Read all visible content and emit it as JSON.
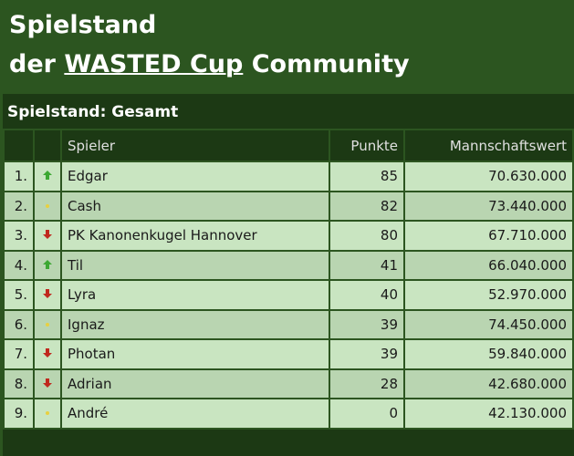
{
  "header": {
    "line1": "Spielstand",
    "prefix": "der",
    "link": "WASTED Cup",
    "suffix": "Community"
  },
  "table": {
    "title": "Spielstand: Gesamt",
    "columns": [
      "Spieler",
      "Punkte",
      "Mannschaftswert"
    ],
    "rows": [
      {
        "rank": "1.",
        "trend": "up",
        "name": "Edgar",
        "points": 85,
        "value": "70.630.000"
      },
      {
        "rank": "2.",
        "trend": "same",
        "name": "Cash",
        "points": 82,
        "value": "73.440.000"
      },
      {
        "rank": "3.",
        "trend": "down",
        "name": "PK Kanonenkugel Hannover",
        "points": 80,
        "value": "67.710.000"
      },
      {
        "rank": "4.",
        "trend": "up",
        "name": "Til",
        "points": 41,
        "value": "66.040.000"
      },
      {
        "rank": "5.",
        "trend": "down",
        "name": "Lyra",
        "points": 40,
        "value": "52.970.000"
      },
      {
        "rank": "6.",
        "trend": "same",
        "name": "Ignaz",
        "points": 39,
        "value": "74.450.000"
      },
      {
        "rank": "7.",
        "trend": "down",
        "name": "Photan",
        "points": 39,
        "value": "59.840.000"
      },
      {
        "rank": "8.",
        "trend": "down",
        "name": "Adrian",
        "points": 28,
        "value": "42.680.000"
      },
      {
        "rank": "9.",
        "trend": "same",
        "name": "André",
        "points": 0,
        "value": "42.130.000"
      }
    ]
  }
}
